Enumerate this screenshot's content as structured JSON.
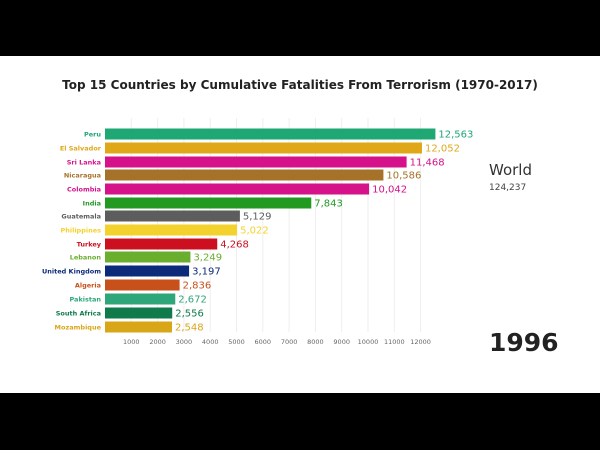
{
  "chart_data": {
    "type": "bar",
    "title": "Top 15 Countries by Cumulative Fatalities From Terrorism (1970-2017)",
    "categories": [
      "Peru",
      "El Salvador",
      "Sri Lanka",
      "Nicaragua",
      "Colombia",
      "India",
      "Guatemala",
      "Philippines",
      "Turkey",
      "Lebanon",
      "United Kingdom",
      "Algeria",
      "Pakistan",
      "South Africa",
      "Mozambique"
    ],
    "values": [
      12563,
      12052,
      11468,
      10586,
      10042,
      7843,
      5129,
      5022,
      4268,
      3249,
      3197,
      2836,
      2672,
      2556,
      2548
    ],
    "value_labels": [
      "12,563",
      "12,052",
      "11,468",
      "10,586",
      "10,042",
      "7,843",
      "5,129",
      "5,022",
      "4,268",
      "3,249",
      "3,197",
      "2,836",
      "2,672",
      "2,556",
      "2,548"
    ],
    "colors": [
      "#1fa774",
      "#e0a819",
      "#d5128a",
      "#a6722a",
      "#d5128a",
      "#229a22",
      "#5d5d5d",
      "#f3d22e",
      "#cc1020",
      "#6aae2e",
      "#0c2a7a",
      "#c8501a",
      "#2fa67a",
      "#0f7a4a",
      "#d9a618"
    ],
    "x_ticks": [
      1000,
      2000,
      3000,
      4000,
      5000,
      6000,
      7000,
      8000,
      9000,
      10000,
      11000,
      12000
    ],
    "xlim": [
      0,
      13000
    ],
    "grid": true
  },
  "world": {
    "label": "World",
    "value": "124,237"
  },
  "year": "1996"
}
